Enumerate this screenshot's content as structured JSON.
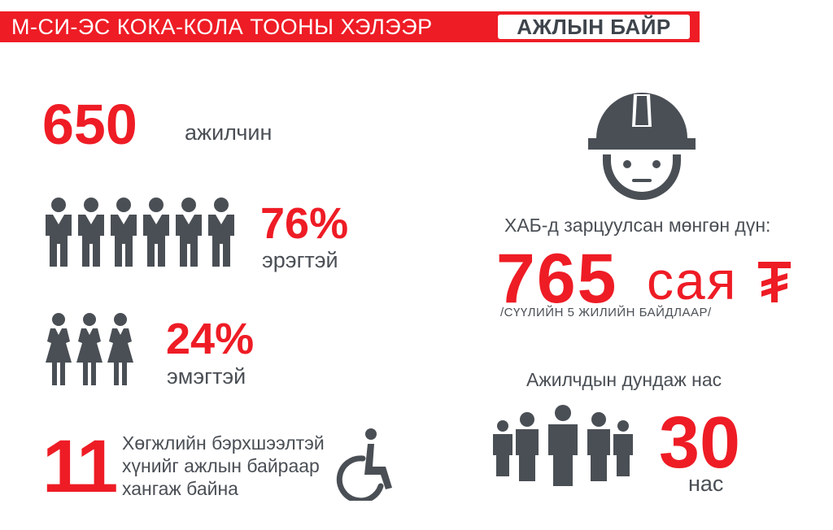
{
  "header": {
    "title": "М-СИ-ЭС КОКА-КОЛА ТООНЫ ХЭЛЭЭР",
    "tab": "АЖЛЫН БАЙР"
  },
  "employees": {
    "value": "650",
    "label": "ажилчин"
  },
  "men": {
    "percent": "76%",
    "label": "эрэгтэй",
    "icon_count": 6,
    "icon": "male-figure-icon"
  },
  "women": {
    "percent": "24%",
    "label": "эмэгтэй",
    "icon_count": 3,
    "icon": "female-figure-icon"
  },
  "disabled": {
    "value": "11",
    "lines": [
      "Хөгжлийн бэрхшээлтэй",
      "хүнийг ажлын байраар",
      "хангаж байна"
    ],
    "icon": "wheelchair-icon"
  },
  "ohs": {
    "icon": "worker-helmet-icon",
    "label": "ХАБ-д зарцуулсан мөнгөн дүн:",
    "value": "765",
    "unit": "сая",
    "currency_icon": "tugrik-icon",
    "note": "/СҮҮЛИЙН 5 ЖИЛИЙН БАЙДЛААР/"
  },
  "age": {
    "label": "Ажилчдын дундаж нас",
    "value": "30",
    "unit": "нас",
    "icon": "crowd-icon"
  },
  "colors": {
    "accent": "#ee1c25",
    "text": "#4a4f55",
    "icon": "#4a4f55",
    "background": "#ffffff"
  }
}
